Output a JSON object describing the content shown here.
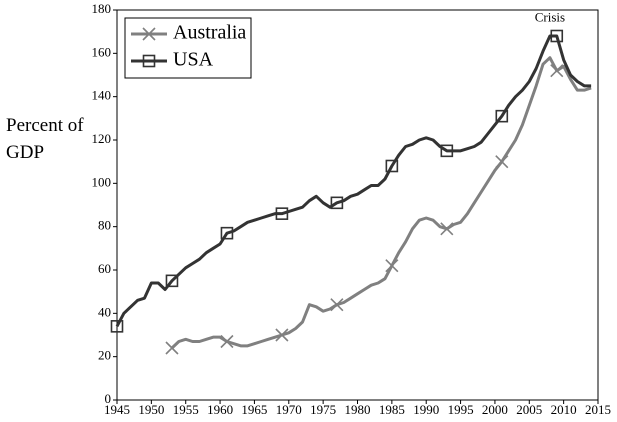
{
  "chart_data": {
    "type": "line",
    "y_label": "Percent of GDP",
    "annotations": [
      {
        "text": "Crisis",
        "x": 2008,
        "y": 176
      }
    ],
    "legend": "top-left",
    "grid": false,
    "x": [
      1945,
      1946,
      1947,
      1948,
      1949,
      1950,
      1951,
      1952,
      1953,
      1954,
      1955,
      1956,
      1957,
      1958,
      1959,
      1960,
      1961,
      1962,
      1963,
      1964,
      1965,
      1966,
      1967,
      1968,
      1969,
      1970,
      1971,
      1972,
      1973,
      1974,
      1975,
      1976,
      1977,
      1978,
      1979,
      1980,
      1981,
      1982,
      1983,
      1984,
      1985,
      1986,
      1987,
      1988,
      1989,
      1990,
      1991,
      1992,
      1993,
      1994,
      1995,
      1996,
      1997,
      1998,
      1999,
      2000,
      2001,
      2002,
      2003,
      2004,
      2005,
      2006,
      2007,
      2008,
      2009,
      2010,
      2011,
      2012,
      2013,
      2014
    ],
    "xlim": [
      1945,
      2015
    ],
    "xticks": [
      1945,
      1950,
      1955,
      1960,
      1965,
      1970,
      1975,
      1980,
      1985,
      1990,
      1995,
      2000,
      2005,
      2010,
      2015
    ],
    "ylim": [
      0,
      180
    ],
    "yticks": [
      0,
      20,
      40,
      60,
      80,
      100,
      120,
      140,
      160,
      180
    ],
    "series": [
      {
        "name": "Australia",
        "color": "#808080",
        "marker": "x",
        "values": [
          null,
          null,
          null,
          null,
          null,
          null,
          null,
          null,
          24,
          27,
          28,
          27,
          27,
          28,
          29,
          29,
          27,
          26,
          25,
          25,
          26,
          27,
          28,
          29,
          30,
          31,
          33,
          36,
          44,
          43,
          41,
          42,
          44,
          45,
          47,
          49,
          51,
          53,
          54,
          56,
          62,
          68,
          73,
          79,
          83,
          84,
          83,
          80,
          79,
          81,
          82,
          86,
          91,
          96,
          101,
          106,
          110,
          115,
          120,
          127,
          136,
          145,
          155,
          158,
          152,
          154,
          148,
          143,
          143,
          144
        ]
      },
      {
        "name": "USA",
        "color": "#333333",
        "marker": "square",
        "values": [
          34,
          40,
          43,
          46,
          47,
          54,
          54,
          51,
          55,
          58,
          61,
          63,
          65,
          68,
          70,
          72,
          77,
          78,
          80,
          82,
          83,
          84,
          85,
          86,
          86,
          87,
          88,
          89,
          92,
          94,
          91,
          89,
          91,
          92,
          94,
          95,
          97,
          99,
          99,
          102,
          108,
          113,
          117,
          118,
          120,
          121,
          120,
          117,
          115,
          115,
          115,
          116,
          117,
          119,
          123,
          127,
          131,
          136,
          140,
          143,
          147,
          153,
          161,
          168,
          168,
          157,
          150,
          147,
          145,
          145
        ]
      }
    ]
  }
}
